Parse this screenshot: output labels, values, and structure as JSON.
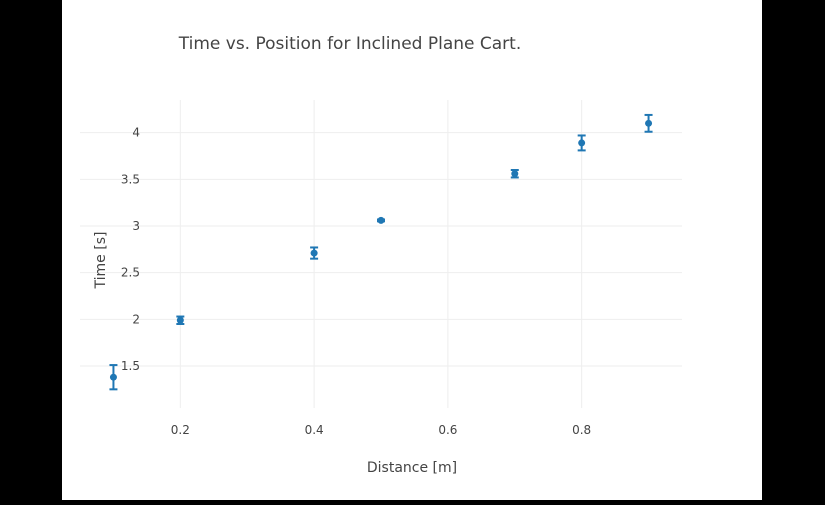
{
  "chart_data": {
    "type": "scatter",
    "title": "Time vs. Position for Inclined Plane Cart.",
    "xlabel": "Distance [m]",
    "ylabel": "Time [s]",
    "xlim": [
      0.05,
      0.95
    ],
    "ylim": [
      1.05,
      4.35
    ],
    "xticks": [
      0.2,
      0.4,
      0.6,
      0.8
    ],
    "xtick_labels": [
      "0.2",
      "0.4",
      "0.6",
      "0.8"
    ],
    "yticks": [
      1.5,
      2,
      2.5,
      3,
      3.5,
      4
    ],
    "ytick_labels": [
      "1.5",
      "2",
      "2.5",
      "3",
      "3.5",
      "4"
    ],
    "grid": true,
    "legend": false,
    "series": [
      {
        "color": "#1f77b4",
        "marker": "circle",
        "error_bars": true,
        "points": [
          {
            "x": 0.1,
            "y": 1.38,
            "err": 0.13
          },
          {
            "x": 0.2,
            "y": 1.99,
            "err": 0.04
          },
          {
            "x": 0.4,
            "y": 2.71,
            "err": 0.06
          },
          {
            "x": 0.5,
            "y": 3.06,
            "err": 0.01
          },
          {
            "x": 0.7,
            "y": 3.56,
            "err": 0.04
          },
          {
            "x": 0.8,
            "y": 3.89,
            "err": 0.08
          },
          {
            "x": 0.9,
            "y": 4.1,
            "err": 0.09
          }
        ]
      }
    ]
  }
}
